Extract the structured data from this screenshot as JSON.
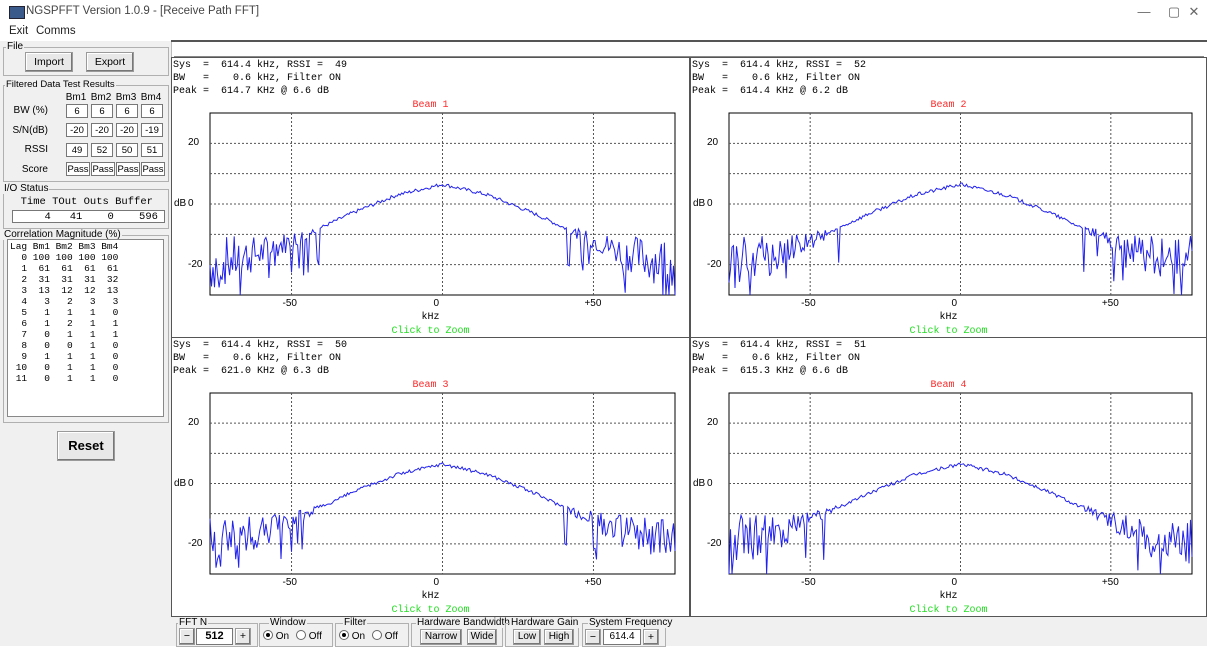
{
  "window": {
    "title": "NGSPFFT Version 1.0.9 - [Receive Path FFT]",
    "controls": [
      "—",
      "▢",
      "✕"
    ]
  },
  "menu": [
    "Exit",
    "Comms"
  ],
  "file_group": {
    "title": "File",
    "import_label": "Import",
    "export_label": "Export"
  },
  "test_results": {
    "title": "Filtered Data Test Results",
    "columns": [
      "Bm1",
      "Bm2",
      "Bm3",
      "Bm4"
    ],
    "rows": [
      {
        "label": "BW (%)",
        "values": [
          "6",
          "6",
          "6",
          "6"
        ]
      },
      {
        "label": "S/N(dB)",
        "values": [
          "-20",
          "-20",
          "-20",
          "-19"
        ]
      },
      {
        "label": "RSSI",
        "values": [
          "49",
          "52",
          "50",
          "51"
        ]
      },
      {
        "label": "Score",
        "values": [
          "Pass",
          "Pass",
          "Pass",
          "Pass"
        ]
      }
    ]
  },
  "io_status": {
    "title": "I/O Status",
    "header": "  Time TOut Outs Buffer",
    "values": "     4   41    0    596"
  },
  "correlation": {
    "title": "Correlation Magnitude (%)",
    "header": "Lag Bm1 Bm2 Bm3 Bm4",
    "rows": [
      "  0 100 100 100 100",
      "  1  61  61  61  61",
      "  2  31  31  31  32",
      "  3  13  12  12  13",
      "  4   3   2   3   3",
      "  5   1   1   1   0",
      "  6   1   2   1   1",
      "  7   0   1   1   1",
      "  8   0   0   1   0",
      "  9   1   1   1   0",
      " 10   0   1   1   0",
      " 11   0   1   1   0"
    ]
  },
  "reset_label": "Reset",
  "beams": [
    {
      "sys": "Sys  =  614.4 kHz, RSSI =  49",
      "bw": "BW   =    0.6 kHz, Filter ON",
      "peak": "Peak =  614.7 KHz @ 6.6 dB",
      "title": "Beam 1",
      "zoom": "Click to Zoom"
    },
    {
      "sys": "Sys  =  614.4 kHz, RSSI =  52",
      "bw": "BW   =    0.6 kHz, Filter ON",
      "peak": "Peak =  614.4 KHz @ 6.2 dB",
      "title": "Beam 2",
      "zoom": "Click to Zoom"
    },
    {
      "sys": "Sys  =  614.4 kHz, RSSI =  50",
      "bw": "BW   =    0.6 kHz, Filter ON",
      "peak": "Peak =  621.0 KHz @ 6.3 dB",
      "title": "Beam 3",
      "zoom": "Click to Zoom"
    },
    {
      "sys": "Sys  =  614.4 kHz, RSSI =  51",
      "bw": "BW   =    0.6 kHz, Filter ON",
      "peak": "Peak =  615.3 KHz @ 6.6 dB",
      "title": "Beam 4",
      "zoom": "Click to Zoom"
    }
  ],
  "plot_axes": {
    "y_ticks": [
      "20",
      "0",
      "-20"
    ],
    "y_label": "dB",
    "x_ticks": [
      "-50",
      "0",
      "+50"
    ],
    "x_label": "kHz"
  },
  "chart_data": {
    "type": "line",
    "xlabel": "kHz",
    "ylabel": "dB",
    "xlim": [
      -77,
      77
    ],
    "ylim": [
      -30,
      30
    ],
    "grid": true,
    "series_color": "#2222ee",
    "envelope_x": [
      -77,
      -60,
      -45,
      -30,
      -15,
      0,
      15,
      30,
      45,
      60,
      77
    ],
    "envelope_y": [
      -20,
      -16,
      -10,
      -3,
      3,
      6.5,
      3,
      -3,
      -10,
      -16,
      -20
    ]
  },
  "bottom": {
    "fftn": {
      "title": "FFT N",
      "value": "512",
      "minus": "−",
      "plus": "+"
    },
    "window": {
      "title": "Window",
      "on": "On",
      "off": "Off"
    },
    "filter": {
      "title": "Filter",
      "on": "On",
      "off": "Off"
    },
    "hw_bandwidth": {
      "title": "Hardware Bandwidth",
      "narrow": "Narrow",
      "wide": "Wide"
    },
    "hw_gain": {
      "title": "Hardware Gain",
      "low": "Low",
      "high": "High"
    },
    "sys_freq": {
      "title": "System Frequency",
      "value": "614.4",
      "minus": "−",
      "plus": "+"
    }
  },
  "colors": {
    "beam_title": "#ff2a2a",
    "zoom_text": "#22dd22",
    "trace": "#2222ee"
  }
}
